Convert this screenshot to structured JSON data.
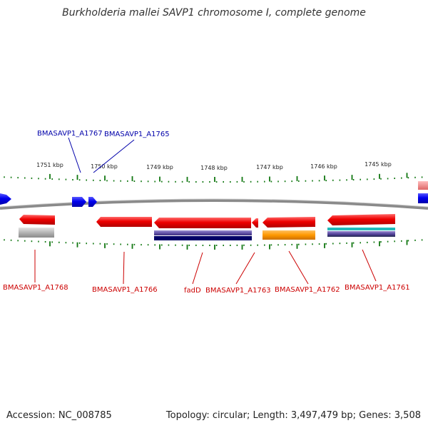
{
  "title": "Burkholderia mallei SAVP1 chromosome I, complete genome",
  "footer": {
    "accession": "Accession: NC_008785",
    "topology": "Topology: circular; Length: 3,497,479 bp; Genes: 3,508"
  },
  "ticks": [
    "1751 kbp",
    "1750 kbp",
    "1749 kbp",
    "1748 kbp",
    "1747 kbp",
    "1746 kbp",
    "1745 kbp"
  ],
  "forward_labels": [
    "BMASAVP1_A1767",
    "BMASAVP1_A1765"
  ],
  "reverse_labels": [
    "BMASAVP1_A1768",
    "BMASAVP1_A1766",
    "fadD",
    "BMASAVP1_A1763",
    "BMASAVP1_A1762",
    "BMASAVP1_A1761"
  ],
  "colors": {
    "forward_gene": "#0000ee",
    "reverse_gene": "#ee0000",
    "backbone": "#888888",
    "tick": "#117711",
    "forward_label": "#0000aa",
    "reverse_label": "#cc0000",
    "gray_feature": "#b0b0b0",
    "orange_feature": "#ff9900",
    "teal_feature": "#22bbbb",
    "purple_feature": "#6655aa",
    "navy_feature": "#000066",
    "pink_feature": "#ee8888"
  }
}
